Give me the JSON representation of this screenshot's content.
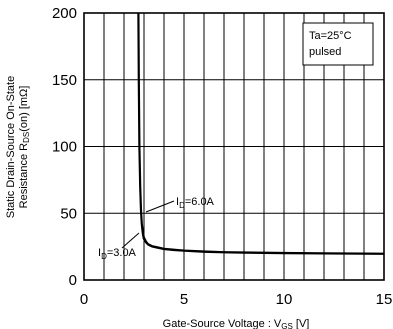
{
  "chart_data": {
    "type": "line",
    "xlabel": {
      "prefix": "Gate-Source Voltage : V",
      "sub": "GS",
      "suffix": " [V]"
    },
    "ylabel": {
      "line1": "Static Drain-Source On-State",
      "line2_prefix": "Resistance  R",
      "line2_sub": "DS",
      "line2_suffix": "(on) [mΩ]"
    },
    "xlim": [
      0,
      15
    ],
    "ylim": [
      0,
      200
    ],
    "xticks": [
      0,
      5,
      10,
      15
    ],
    "yticks": [
      0,
      50,
      100,
      150,
      200
    ],
    "grid": {
      "x_step": 1,
      "y_step": 50
    },
    "conditions": [
      "Ta=25°C",
      "pulsed"
    ],
    "series": [
      {
        "label_prefix": "I",
        "label_sub": "D",
        "label_suffix": "=6.0A",
        "x": [
          2.73,
          2.75,
          2.78,
          2.82,
          2.86,
          2.9,
          2.95,
          3.0,
          3.1,
          3.2,
          3.4,
          3.7,
          4.0,
          4.5,
          5.0,
          6.0,
          7.0,
          8.0,
          10.0,
          12.0,
          15.0
        ],
        "y": [
          200,
          150,
          100,
          70,
          52,
          42,
          36,
          32,
          29,
          27,
          25.5,
          24.5,
          23.5,
          22.8,
          22.2,
          21.5,
          21.0,
          20.8,
          20.4,
          20.1,
          19.8
        ]
      },
      {
        "label_prefix": "I",
        "label_sub": "D",
        "label_suffix": "=3.0A",
        "x": [
          2.71,
          2.73,
          2.76,
          2.8,
          2.84,
          2.88,
          2.93,
          2.98,
          3.1,
          3.2,
          3.4,
          3.7,
          4.0,
          4.5,
          5.0,
          6.0,
          7.0,
          8.0,
          10.0,
          12.0,
          15.0
        ],
        "y": [
          200,
          150,
          100,
          70,
          52,
          42,
          35,
          31,
          28,
          26.5,
          25,
          24,
          23,
          22.3,
          21.8,
          21.0,
          20.6,
          20.3,
          20.0,
          19.8,
          19.5
        ]
      }
    ]
  }
}
